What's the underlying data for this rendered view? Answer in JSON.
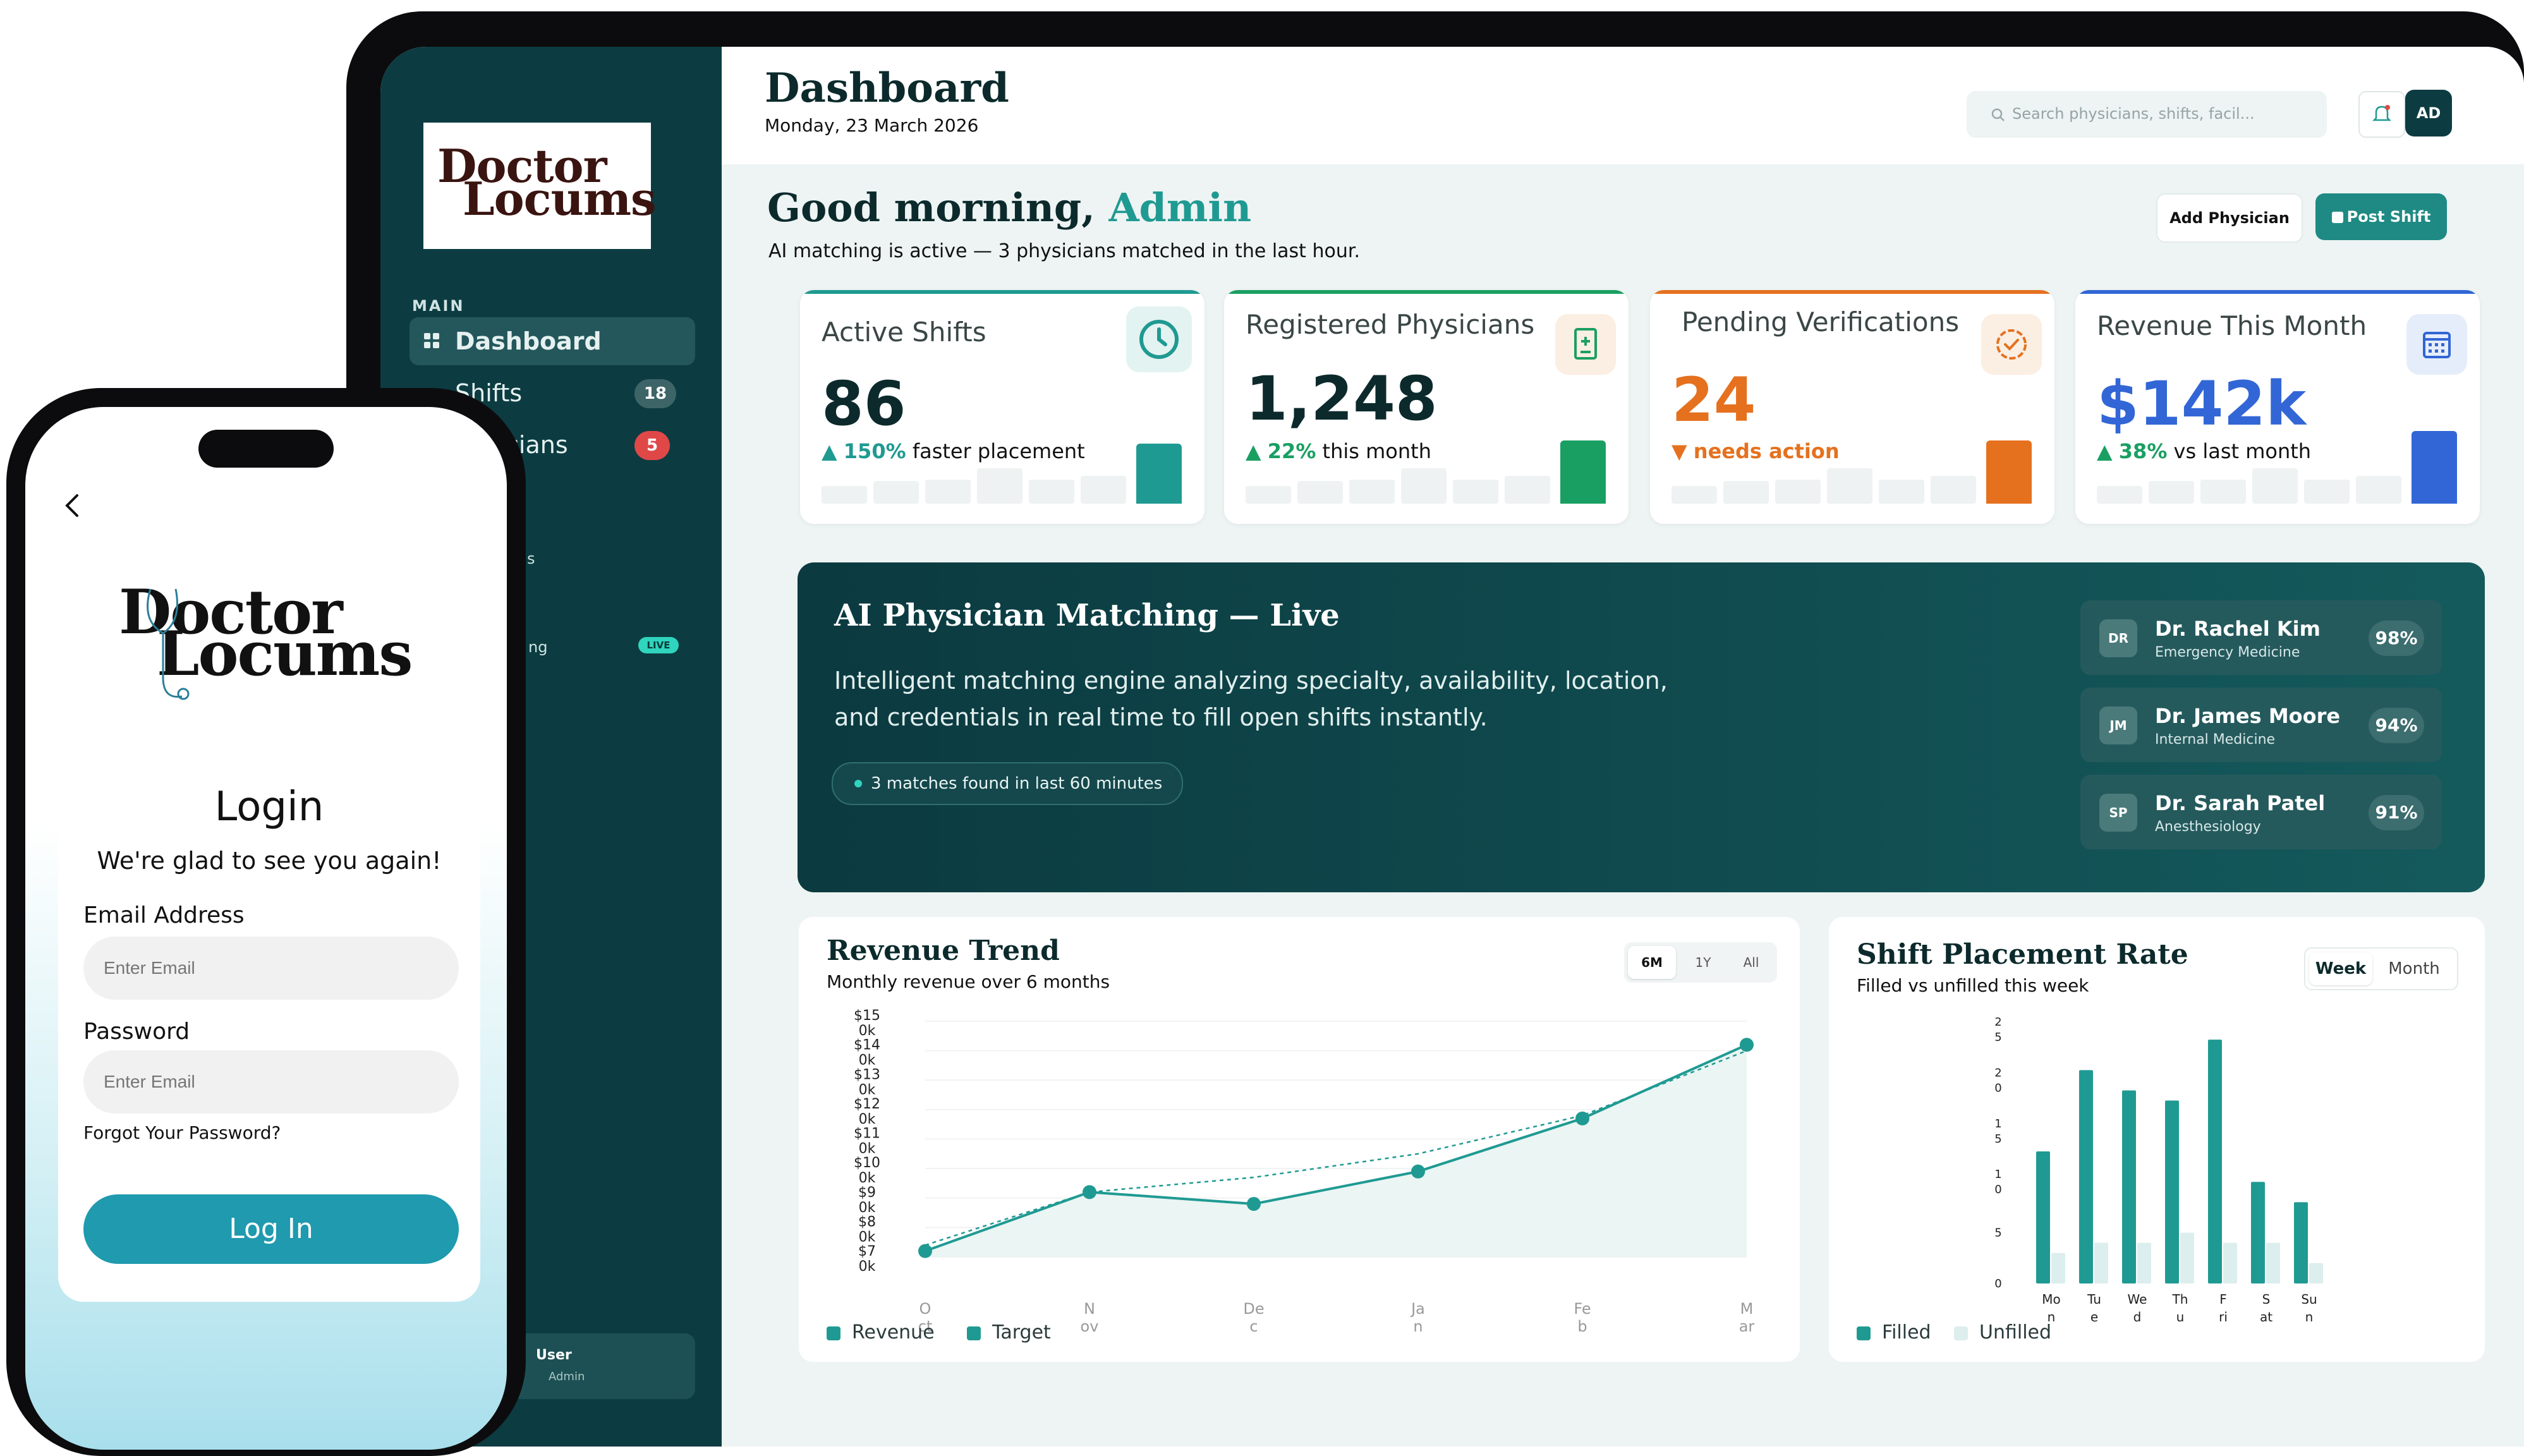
{
  "brand": {
    "logo_line1": "Doctor",
    "logo_line2": "Locums"
  },
  "sidebar": {
    "section_label": "MAIN",
    "items": [
      {
        "label": "Dashboard",
        "active": true
      },
      {
        "label": "Shifts",
        "badge": "18"
      },
      {
        "label": "cians",
        "badge": "5"
      }
    ],
    "live_badge": "LIVE",
    "fragment_ng": "ng",
    "fragment_s": "s",
    "user": {
      "name": "User",
      "role": "Admin"
    }
  },
  "header": {
    "title": "Dashboard",
    "date": "Monday, 23 March 2026",
    "search_placeholder": "Search physicians, shifts, facil...",
    "avatar_initials": "AD"
  },
  "greeting": {
    "prefix": "Good morning,",
    "name": "Admin",
    "subtitle": "AI matching is active — 3 physicians matched in the last hour.",
    "add_physician": "Add Physician",
    "post_shift": "Post Shift"
  },
  "stats": [
    {
      "label": "Active Shifts",
      "value": "86",
      "delta": "150%",
      "delta_suffix": "faster placement",
      "direction": "up",
      "accent": "#1f9a92",
      "icon": "clock-icon",
      "level": 0.95
    },
    {
      "label": "Registered Physicians",
      "value": "1,248",
      "delta": "22%",
      "delta_suffix": "this month",
      "direction": "up",
      "accent": "#1a9f62",
      "icon": "document-plus-icon",
      "level": 1.0
    },
    {
      "label": "Pending Verifications",
      "value": "24",
      "delta": "needs action",
      "delta_suffix": "",
      "direction": "down",
      "accent": "#e5711f",
      "icon": "badge-check-icon",
      "level": 1.0
    },
    {
      "label": "Revenue This Month",
      "value": "$142k",
      "delta": "38%",
      "delta_suffix": "vs last month",
      "direction": "up",
      "accent": "#3266d6",
      "icon": "calendar-icon",
      "level": 1.15
    }
  ],
  "ai_panel": {
    "title": "AI Physician Matching — Live",
    "description": "Intelligent matching engine analyzing specialty, availability, location, and credentials in real time to fill open shifts instantly.",
    "pill": "3 matches found in last 60 minutes",
    "matches": [
      {
        "initials": "DR",
        "name": "Dr. Rachel Kim",
        "specialty": "Emergency Medicine",
        "score": "98%"
      },
      {
        "initials": "JM",
        "name": "Dr. James Moore",
        "specialty": "Internal Medicine",
        "score": "94%"
      },
      {
        "initials": "SP",
        "name": "Dr. Sarah Patel",
        "specialty": "Anesthesiology",
        "score": "91%"
      }
    ]
  },
  "revenue_chart": {
    "title": "Revenue Trend",
    "subtitle": "Monthly revenue over 6 months",
    "ranges": [
      "6M",
      "1Y",
      "All"
    ],
    "selected_range": "6M",
    "legend": [
      "Revenue",
      "Target"
    ],
    "colors": {
      "revenue": "#1f9a92",
      "target": "#1f9a92"
    }
  },
  "placement_chart": {
    "title": "Shift Placement Rate",
    "subtitle": "Filled vs unfilled this week",
    "ranges": [
      "Week",
      "Month"
    ],
    "selected_range": "Week",
    "legend": [
      "Filled",
      "Unfilled"
    ],
    "colors": {
      "filled": "#1f9a92",
      "unfilled": "#dceeed"
    }
  },
  "chart_data": [
    {
      "type": "line",
      "title": "Revenue Trend",
      "subtitle": "Monthly revenue over 6 months",
      "categories": [
        "Oct",
        "Nov",
        "Dec",
        "Jan",
        "Feb",
        "Mar"
      ],
      "tick_labels": [
        [
          "O",
          "ct"
        ],
        [
          "N",
          "ov"
        ],
        [
          "De",
          "c"
        ],
        [
          "Ja",
          "n"
        ],
        [
          "Fe",
          "b"
        ],
        [
          "M",
          "ar"
        ]
      ],
      "y_ticks": [
        [
          "$15",
          "0k"
        ],
        [
          "$14",
          "0k"
        ],
        [
          "$13",
          "0k"
        ],
        [
          "$12",
          "0k"
        ],
        [
          "$11",
          "0k"
        ],
        [
          "$10",
          "0k"
        ],
        [
          "$9",
          "0k"
        ],
        [
          "$8",
          "0k"
        ],
        [
          "$7",
          "0k"
        ]
      ],
      "y_tick_values": [
        150,
        140,
        130,
        120,
        110,
        100,
        90,
        80,
        70
      ],
      "ylim": [
        70,
        150
      ],
      "series": [
        {
          "name": "Revenue",
          "values": [
            72,
            92,
            88,
            99,
            117,
            142
          ]
        },
        {
          "name": "Target",
          "values": [
            74,
            92,
            97,
            105,
            118,
            140
          ]
        }
      ],
      "grid": true,
      "legend": "bottom-left"
    },
    {
      "type": "bar",
      "title": "Shift Placement Rate",
      "subtitle": "Filled vs unfilled this week",
      "categories": [
        "Mon",
        "Tue",
        "Wed",
        "Thu",
        "Fri",
        "Sat",
        "Sun"
      ],
      "tick_labels": [
        [
          "Mo",
          "n"
        ],
        [
          "Tu",
          "e"
        ],
        [
          "We",
          "d"
        ],
        [
          "Th",
          "u"
        ],
        [
          "F",
          "ri"
        ],
        [
          "S",
          "at"
        ],
        [
          "Su",
          "n"
        ]
      ],
      "y_ticks": [
        [
          "2",
          "5"
        ],
        [
          "2",
          "0"
        ],
        [
          "1",
          "5"
        ],
        [
          "1",
          "0"
        ],
        [
          "5"
        ],
        [
          "0"
        ]
      ],
      "y_tick_values": [
        25,
        20,
        15,
        10,
        5,
        0
      ],
      "ylim": [
        0,
        25
      ],
      "series": [
        {
          "name": "Filled",
          "values": [
            13,
            21,
            19,
            18,
            24,
            10,
            8
          ]
        },
        {
          "name": "Unfilled",
          "values": [
            3,
            4,
            4,
            5,
            4,
            4,
            2
          ]
        }
      ],
      "grid": false,
      "legend": "bottom-left"
    }
  ],
  "phone": {
    "title": "Login",
    "subtitle": "We're glad to see you again!",
    "email_label": "Email Address",
    "email_placeholder": "Enter Email",
    "password_label": "Password",
    "password_placeholder": "Enter Email",
    "forgot": "Forgot Your Password?",
    "login_button": "Log In"
  }
}
